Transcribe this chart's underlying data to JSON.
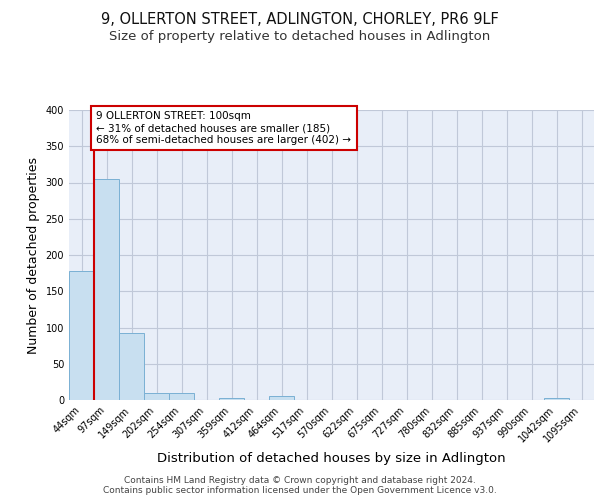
{
  "title1": "9, OLLERTON STREET, ADLINGTON, CHORLEY, PR6 9LF",
  "title2": "Size of property relative to detached houses in Adlington",
  "xlabel": "Distribution of detached houses by size in Adlington",
  "ylabel": "Number of detached properties",
  "footer1": "Contains HM Land Registry data © Crown copyright and database right 2024.",
  "footer2": "Contains public sector information licensed under the Open Government Licence v3.0.",
  "bin_labels": [
    "44sqm",
    "97sqm",
    "149sqm",
    "202sqm",
    "254sqm",
    "307sqm",
    "359sqm",
    "412sqm",
    "464sqm",
    "517sqm",
    "570sqm",
    "622sqm",
    "675sqm",
    "727sqm",
    "780sqm",
    "832sqm",
    "885sqm",
    "937sqm",
    "990sqm",
    "1042sqm",
    "1095sqm"
  ],
  "bar_heights": [
    178,
    305,
    93,
    9,
    10,
    0,
    3,
    0,
    5,
    0,
    0,
    0,
    0,
    0,
    0,
    0,
    0,
    0,
    0,
    3,
    0
  ],
  "bar_color": "#c8dff0",
  "bar_edgecolor": "#7ab0d4",
  "subject_line_color": "#cc0000",
  "annotation_text": "9 OLLERTON STREET: 100sqm\n← 31% of detached houses are smaller (185)\n68% of semi-detached houses are larger (402) →",
  "annotation_box_edgecolor": "#cc0000",
  "annotation_box_facecolor": "white",
  "ylim": [
    0,
    400
  ],
  "yticks": [
    0,
    50,
    100,
    150,
    200,
    250,
    300,
    350,
    400
  ],
  "grid_color": "#c0c8d8",
  "bg_color": "#e8eef8",
  "title_fontsize": 10.5,
  "subtitle_fontsize": 9.5,
  "axis_label_fontsize": 9,
  "tick_fontsize": 7,
  "footer_fontsize": 6.5
}
